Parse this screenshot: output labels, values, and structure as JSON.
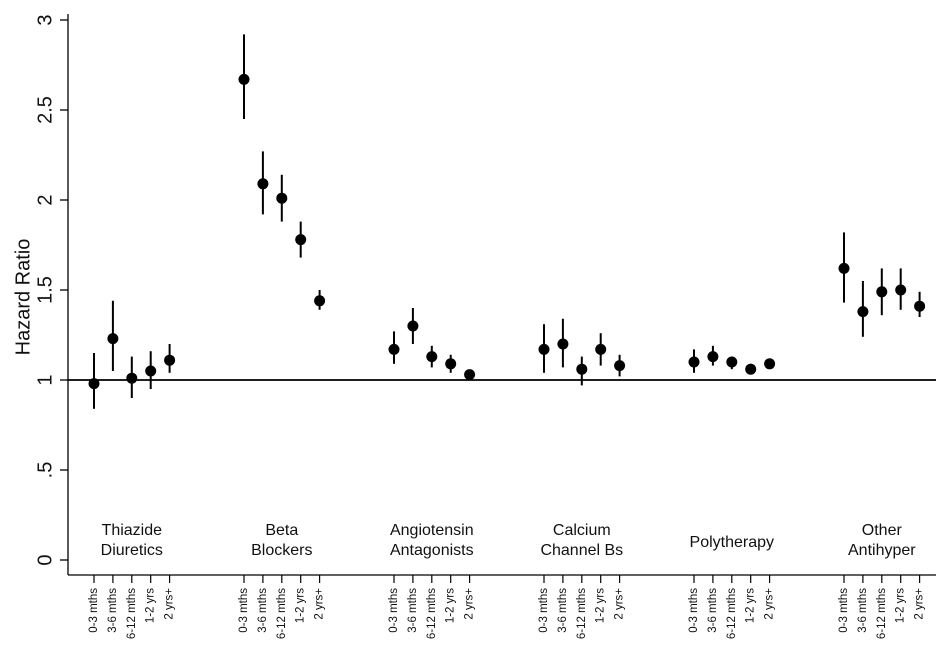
{
  "chart_data": {
    "type": "dot-errorbar",
    "y_label": "Hazard Ratio",
    "ylim": [
      0,
      3
    ],
    "yticks": [
      0,
      {
        "value": 0.5,
        "label": ".5"
      },
      1,
      1.5,
      2,
      2.5,
      3
    ],
    "hline": 1,
    "color": "#000000",
    "categories": [
      "0-3 mths",
      "3-6 mths",
      "6-12 mths",
      "1-2 yrs",
      "2 yrs+"
    ],
    "series": [
      {
        "name": [
          "Thiazide",
          "Diuretics"
        ],
        "values": [
          0.98,
          1.23,
          1.01,
          1.05,
          1.11
        ],
        "lower": [
          0.84,
          1.05,
          0.9,
          0.95,
          1.04
        ],
        "upper": [
          1.15,
          1.44,
          1.13,
          1.16,
          1.2
        ]
      },
      {
        "name": [
          "Beta",
          "Blockers"
        ],
        "values": [
          2.67,
          2.09,
          2.01,
          1.78,
          1.44
        ],
        "lower": [
          2.45,
          1.92,
          1.88,
          1.68,
          1.39
        ],
        "upper": [
          2.92,
          2.27,
          2.14,
          1.88,
          1.5
        ]
      },
      {
        "name": [
          "Angiotensin",
          "Antagonists"
        ],
        "values": [
          1.17,
          1.3,
          1.13,
          1.09,
          1.03
        ],
        "lower": [
          1.09,
          1.2,
          1.07,
          1.04,
          1.01
        ],
        "upper": [
          1.27,
          1.4,
          1.19,
          1.14,
          1.05
        ]
      },
      {
        "name": [
          "Calcium",
          "Channel Bs"
        ],
        "values": [
          1.17,
          1.2,
          1.06,
          1.17,
          1.08
        ],
        "lower": [
          1.04,
          1.07,
          0.97,
          1.08,
          1.02
        ],
        "upper": [
          1.31,
          1.34,
          1.13,
          1.26,
          1.14
        ]
      },
      {
        "name": [
          "Polytherapy"
        ],
        "values": [
          1.1,
          1.13,
          1.1,
          1.06,
          1.09
        ],
        "lower": [
          1.04,
          1.08,
          1.06,
          1.04,
          1.07
        ],
        "upper": [
          1.17,
          1.19,
          1.13,
          1.09,
          1.11
        ]
      },
      {
        "name": [
          "Other",
          "Antihyper"
        ],
        "values": [
          1.62,
          1.38,
          1.49,
          1.5,
          1.41
        ],
        "lower": [
          1.43,
          1.24,
          1.36,
          1.39,
          1.35
        ],
        "upper": [
          1.82,
          1.55,
          1.62,
          1.62,
          1.49
        ]
      }
    ]
  }
}
